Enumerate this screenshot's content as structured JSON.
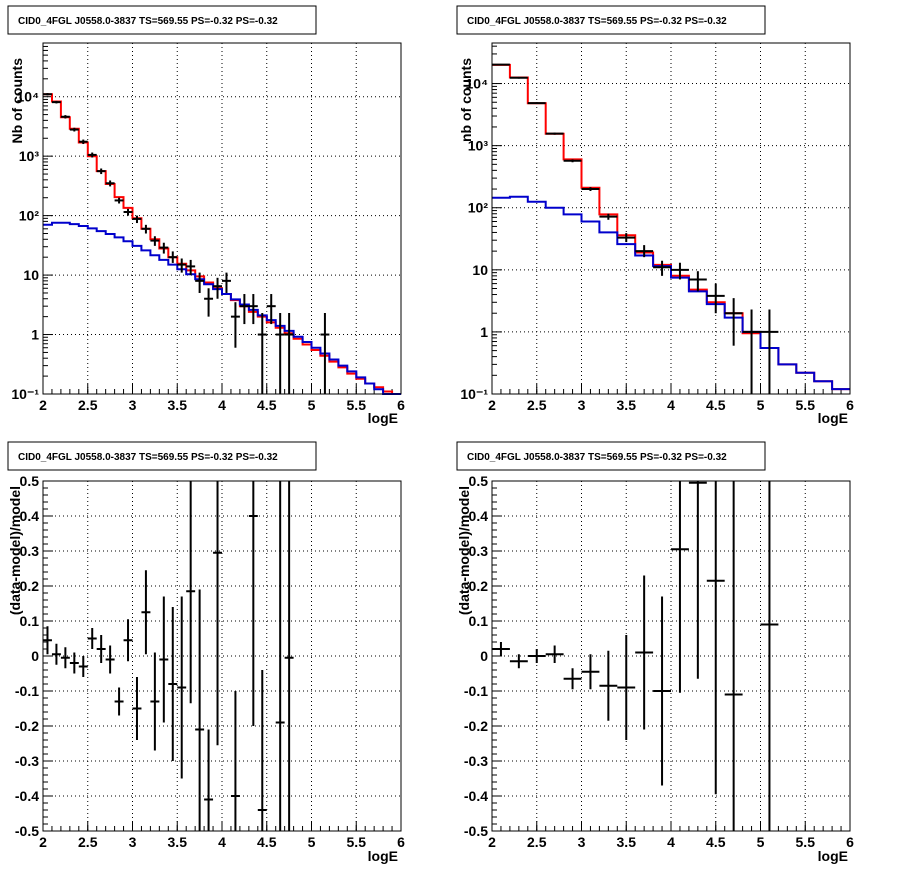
{
  "chart_data": [
    {
      "type": "step",
      "title": "CID0_4FGL J0558.0-3837 TS=569.55 PS=-0.32 PS=-0.32",
      "xlabel": "logE",
      "ylabel": "Nb of counts",
      "xlim": [
        2,
        6
      ],
      "ylim": [
        0.1,
        80000
      ],
      "yscale": "log",
      "grid": true,
      "xticks": [
        "2",
        "2.5",
        "3",
        "3.5",
        "4",
        "4.5",
        "5",
        "5.5",
        "6"
      ],
      "yticks": [
        {
          "value": 0.1,
          "label": "10⁻¹"
        },
        {
          "value": 1,
          "label": "1"
        },
        {
          "value": 10,
          "label": "10"
        },
        {
          "value": 100,
          "label": "10²"
        },
        {
          "value": 1000,
          "label": "10³"
        },
        {
          "value": 10000,
          "label": "10⁴"
        }
      ],
      "bin_width": 0.1,
      "series": [
        {
          "role": "total_model",
          "color": "#ff0000",
          "x_start": 2.0,
          "values": [
            11000,
            8300,
            4500,
            2900,
            1700,
            1000,
            560,
            340,
            205,
            135,
            90,
            60,
            40,
            28,
            20,
            15.5,
            12,
            9.5,
            7.5,
            6.0,
            4.8,
            3.8,
            3.0,
            2.4,
            2.0,
            1.6,
            1.3,
            1.05,
            0.85,
            0.68,
            0.55,
            0.44,
            0.35,
            0.28,
            0.22,
            0.18,
            0.15,
            0.13,
            0.11,
            0.1
          ]
        },
        {
          "role": "source_model",
          "color": "#0000cc",
          "x_start": 2.0,
          "values": [
            70,
            76,
            76,
            72,
            67,
            61,
            55,
            49,
            43,
            37,
            31,
            26,
            21.5,
            18,
            15,
            12.5,
            10.3,
            8.5,
            7.0,
            5.8,
            4.8,
            3.9,
            3.2,
            2.6,
            2.1,
            1.75,
            1.4,
            1.15,
            0.92,
            0.75,
            0.6,
            0.48,
            0.38,
            0.3,
            0.24,
            0.19,
            0.15,
            0.12,
            0.1,
            0.1
          ]
        }
      ],
      "points": [
        {
          "x": 2.05,
          "y": 11000,
          "ylo": 10500,
          "yhi": 11500
        },
        {
          "x": 2.15,
          "y": 8100,
          "ylo": 7700,
          "yhi": 8500
        },
        {
          "x": 2.25,
          "y": 4600,
          "ylo": 4300,
          "yhi": 4900
        },
        {
          "x": 2.35,
          "y": 2800,
          "ylo": 2600,
          "yhi": 3000
        },
        {
          "x": 2.45,
          "y": 1750,
          "ylo": 1600,
          "yhi": 1900
        },
        {
          "x": 2.55,
          "y": 1050,
          "ylo": 950,
          "yhi": 1150
        },
        {
          "x": 2.65,
          "y": 560,
          "ylo": 500,
          "yhi": 620
        },
        {
          "x": 2.75,
          "y": 350,
          "ylo": 310,
          "yhi": 390
        },
        {
          "x": 2.85,
          "y": 180,
          "ylo": 160,
          "yhi": 200
        },
        {
          "x": 2.95,
          "y": 115,
          "ylo": 100,
          "yhi": 130
        },
        {
          "x": 3.05,
          "y": 88,
          "ylo": 75,
          "yhi": 100
        },
        {
          "x": 3.15,
          "y": 60,
          "ylo": 50,
          "yhi": 70
        },
        {
          "x": 3.25,
          "y": 38,
          "ylo": 31,
          "yhi": 45
        },
        {
          "x": 3.35,
          "y": 29,
          "ylo": 23,
          "yhi": 35
        },
        {
          "x": 3.45,
          "y": 20,
          "ylo": 16,
          "yhi": 25
        },
        {
          "x": 3.55,
          "y": 15,
          "ylo": 11,
          "yhi": 19
        },
        {
          "x": 3.65,
          "y": 14,
          "ylo": 10,
          "yhi": 18
        },
        {
          "x": 3.75,
          "y": 8,
          "ylo": 5,
          "yhi": 11
        },
        {
          "x": 3.85,
          "y": 4,
          "ylo": 2,
          "yhi": 6
        },
        {
          "x": 3.95,
          "y": 6.5,
          "ylo": 4,
          "yhi": 9
        },
        {
          "x": 4.05,
          "y": 8,
          "ylo": 5,
          "yhi": 11
        },
        {
          "x": 4.15,
          "y": 2,
          "ylo": 0.6,
          "yhi": 3.5
        },
        {
          "x": 4.25,
          "y": 3,
          "ylo": 1.5,
          "yhi": 4.8
        },
        {
          "x": 4.35,
          "y": 3,
          "ylo": 1.5,
          "yhi": 4.8
        },
        {
          "x": 4.45,
          "y": 1,
          "ylo": 0.1,
          "yhi": 2.3
        },
        {
          "x": 4.55,
          "y": 3,
          "ylo": 1.5,
          "yhi": 4.8
        },
        {
          "x": 4.65,
          "y": 1,
          "ylo": 0.1,
          "yhi": 2.3
        },
        {
          "x": 4.75,
          "y": 1,
          "ylo": 0.1,
          "yhi": 2.3
        },
        {
          "x": 5.15,
          "y": 1,
          "ylo": 0.1,
          "yhi": 2.3
        }
      ]
    },
    {
      "type": "step",
      "title": "CID0_4FGL J0558.0-3837 TS=569.55 PS=-0.32 PS=-0.32",
      "xlabel": "logE",
      "ylabel": "nb of counts",
      "xlim": [
        2,
        6
      ],
      "ylim": [
        0.1,
        45000
      ],
      "yscale": "log",
      "grid": true,
      "xticks": [
        "2",
        "2.5",
        "3",
        "3.5",
        "4",
        "4.5",
        "5",
        "5.5",
        "6"
      ],
      "yticks": [
        {
          "value": 0.1,
          "label": "10⁻¹"
        },
        {
          "value": 1,
          "label": "1"
        },
        {
          "value": 10,
          "label": "10"
        },
        {
          "value": 100,
          "label": "10²"
        },
        {
          "value": 1000,
          "label": "10³"
        },
        {
          "value": 10000,
          "label": "10⁴"
        }
      ],
      "bin_width": 0.2,
      "series": [
        {
          "role": "total_model",
          "color": "#ff0000",
          "x_start": 2.0,
          "values": [
            20000,
            12500,
            4800,
            1550,
            600,
            210,
            78,
            36,
            19,
            12,
            8.0,
            4.8,
            3.0,
            2.0,
            0.95,
            0.55,
            0.3,
            0.22,
            0.16,
            0.12
          ]
        },
        {
          "role": "source_model",
          "color": "#0000cc",
          "x_start": 2.0,
          "values": [
            145,
            150,
            125,
            100,
            78,
            60,
            40,
            26,
            17,
            11.5,
            7.5,
            4.5,
            2.8,
            1.7,
            1.0,
            0.55,
            0.3,
            0.22,
            0.16,
            0.12
          ]
        }
      ],
      "points": [
        {
          "x": 2.1,
          "y": 20200,
          "ylo": 19700,
          "yhi": 20700
        },
        {
          "x": 2.3,
          "y": 12400,
          "ylo": 12000,
          "yhi": 12800
        },
        {
          "x": 2.5,
          "y": 4850,
          "ylo": 4700,
          "yhi": 5000
        },
        {
          "x": 2.7,
          "y": 1560,
          "ylo": 1500,
          "yhi": 1620
        },
        {
          "x": 2.9,
          "y": 570,
          "ylo": 540,
          "yhi": 600
        },
        {
          "x": 3.1,
          "y": 200,
          "ylo": 186,
          "yhi": 214
        },
        {
          "x": 3.3,
          "y": 72,
          "ylo": 64,
          "yhi": 80
        },
        {
          "x": 3.5,
          "y": 33,
          "ylo": 28,
          "yhi": 39
        },
        {
          "x": 3.7,
          "y": 20,
          "ylo": 16,
          "yhi": 25
        },
        {
          "x": 3.9,
          "y": 11,
          "ylo": 8,
          "yhi": 14
        },
        {
          "x": 4.1,
          "y": 10,
          "ylo": 7,
          "yhi": 13
        },
        {
          "x": 4.3,
          "y": 7,
          "ylo": 4.5,
          "yhi": 9.5
        },
        {
          "x": 4.5,
          "y": 3.8,
          "ylo": 2,
          "yhi": 6
        },
        {
          "x": 4.7,
          "y": 2,
          "ylo": 0.6,
          "yhi": 3.5
        },
        {
          "x": 4.9,
          "y": 1,
          "ylo": 0.1,
          "yhi": 2.3
        },
        {
          "x": 5.1,
          "y": 1,
          "ylo": 0.1,
          "yhi": 2.3
        }
      ]
    },
    {
      "type": "scatter",
      "title": "CID0_4FGL J0558.0-3837 TS=569.55 PS=-0.32 PS=-0.32",
      "xlabel": "logE",
      "ylabel": "(data-model)/model",
      "xlim": [
        2,
        6
      ],
      "ylim": [
        -0.5,
        0.5
      ],
      "grid": true,
      "xticks": [
        "2",
        "2.5",
        "3",
        "3.5",
        "4",
        "4.5",
        "5",
        "5.5",
        "6"
      ],
      "yticks": [
        "-0.5",
        "-0.4",
        "-0.3",
        "-0.2",
        "-0.1",
        "0",
        "0.1",
        "0.2",
        "0.3",
        "0.4",
        "0.5"
      ],
      "bin_width": 0.1,
      "points": [
        {
          "x": 2.05,
          "y": 0.045,
          "err": 0.04
        },
        {
          "x": 2.15,
          "y": 0.005,
          "err": 0.03
        },
        {
          "x": 2.25,
          "y": -0.005,
          "err": 0.03
        },
        {
          "x": 2.35,
          "y": -0.02,
          "err": 0.03
        },
        {
          "x": 2.45,
          "y": -0.03,
          "err": 0.03
        },
        {
          "x": 2.55,
          "y": 0.05,
          "err": 0.03
        },
        {
          "x": 2.65,
          "y": 0.02,
          "err": 0.04
        },
        {
          "x": 2.75,
          "y": -0.01,
          "err": 0.04
        },
        {
          "x": 2.85,
          "y": -0.13,
          "err": 0.04
        },
        {
          "x": 2.95,
          "y": 0.045,
          "err": 0.06
        },
        {
          "x": 3.05,
          "y": -0.15,
          "err": 0.09
        },
        {
          "x": 3.15,
          "y": 0.125,
          "err": 0.12
        },
        {
          "x": 3.25,
          "y": -0.13,
          "err": 0.14
        },
        {
          "x": 3.35,
          "y": -0.01,
          "err": 0.18
        },
        {
          "x": 3.45,
          "y": -0.08,
          "err": 0.22
        },
        {
          "x": 3.55,
          "y": -0.09,
          "err": 0.26
        },
        {
          "x": 3.65,
          "y": 0.185,
          "err": 0.32
        },
        {
          "x": 3.75,
          "y": -0.21,
          "err": 0.4
        },
        {
          "x": 3.85,
          "y": -0.41,
          "err": 0.2
        },
        {
          "x": 3.95,
          "y": 0.295,
          "err": 0.55
        },
        {
          "x": 4.15,
          "y": -0.4,
          "err": 0.3
        },
        {
          "x": 4.35,
          "y": 0.4,
          "err": 0.6
        },
        {
          "x": 4.45,
          "y": -0.44,
          "err": 0.4
        },
        {
          "x": 4.65,
          "y": -0.19,
          "err": 0.9
        },
        {
          "x": 4.75,
          "y": -0.005,
          "err": 0.9
        }
      ]
    },
    {
      "type": "scatter",
      "title": "CID0_4FGL J0558.0-3837 TS=569.55 PS=-0.32 PS=-0.32",
      "xlabel": "logE",
      "ylabel": "(data-model)/model",
      "xlim": [
        2,
        6
      ],
      "ylim": [
        -0.5,
        0.5
      ],
      "grid": true,
      "xticks": [
        "2",
        "2.5",
        "3",
        "3.5",
        "4",
        "4.5",
        "5",
        "5.5",
        "6"
      ],
      "yticks": [
        "-0.5",
        "-0.4",
        "-0.3",
        "-0.2",
        "-0.1",
        "0",
        "0.1",
        "0.2",
        "0.3",
        "0.4",
        "0.5"
      ],
      "bin_width": 0.2,
      "points": [
        {
          "x": 2.1,
          "y": 0.02,
          "err": 0.02
        },
        {
          "x": 2.3,
          "y": -0.015,
          "err": 0.02
        },
        {
          "x": 2.5,
          "y": 0.0,
          "err": 0.02
        },
        {
          "x": 2.7,
          "y": 0.005,
          "err": 0.025
        },
        {
          "x": 2.9,
          "y": -0.065,
          "err": 0.03
        },
        {
          "x": 3.1,
          "y": -0.045,
          "err": 0.05
        },
        {
          "x": 3.3,
          "y": -0.085,
          "err": 0.1
        },
        {
          "x": 3.5,
          "y": -0.09,
          "err": 0.15
        },
        {
          "x": 3.7,
          "y": 0.01,
          "err": 0.22
        },
        {
          "x": 3.9,
          "y": -0.1,
          "err": 0.27
        },
        {
          "x": 4.1,
          "y": 0.305,
          "err": 0.41
        },
        {
          "x": 4.3,
          "y": 0.495,
          "err": 0.56
        },
        {
          "x": 4.5,
          "y": 0.215,
          "err": 0.61
        },
        {
          "x": 4.7,
          "y": -0.11,
          "err": 1.0
        },
        {
          "x": 5.1,
          "y": 0.09,
          "err": 1.2
        }
      ]
    }
  ]
}
